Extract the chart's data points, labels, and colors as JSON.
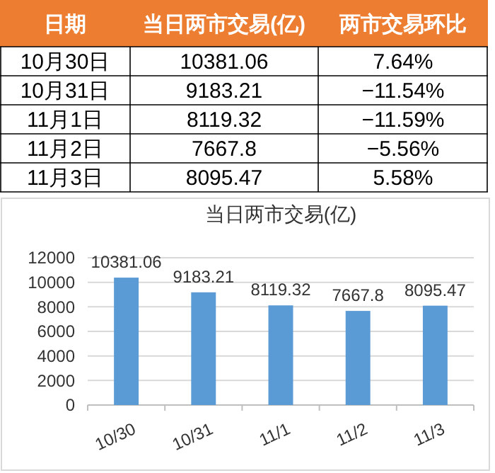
{
  "chart_data": [
    {
      "type": "other",
      "annotations": [
        "日期",
        "当日两市交易(亿)",
        "两市交易环比",
        "10月30日",
        "10381.06",
        "7.64%",
        "10月31日",
        "9183.21",
        "−11.54%",
        "11月1日",
        "8119.32",
        "−11.59%",
        "11月2日",
        "7667.8",
        "−5.56%",
        "11月3日",
        "8095.47",
        "5.58%"
      ]
    },
    {
      "type": "bar",
      "title": "当日两市交易(亿)",
      "categories": [
        "10/30",
        "10/31",
        "11/1",
        "11/2",
        "11/3"
      ],
      "values": [
        10381.06,
        9183.21,
        8119.32,
        7667.8,
        8095.47
      ],
      "color": "#5b9bd5",
      "ylim": [
        0,
        12000
      ],
      "yticks": [
        0,
        2000,
        4000,
        6000,
        8000,
        10000,
        12000
      ],
      "grid": "y",
      "data_labels": true
    }
  ]
}
